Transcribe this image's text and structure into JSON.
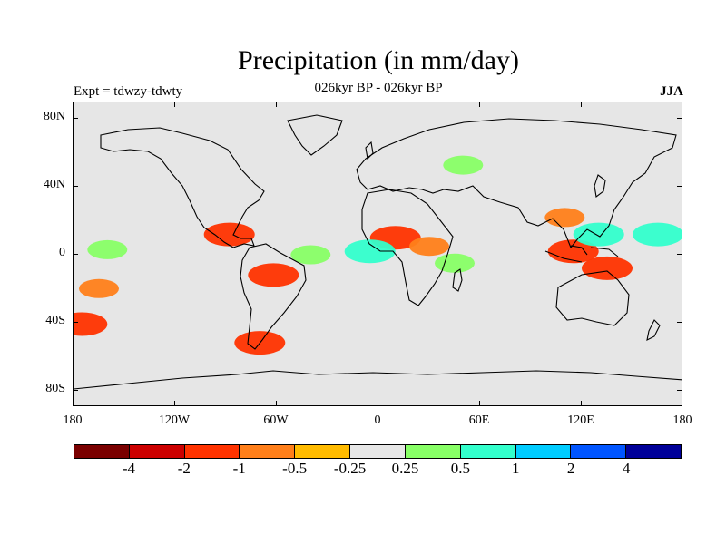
{
  "title": "Precipitation (in mm/day)",
  "subtitle": "026kyr BP - 026kyr BP",
  "experiment": "Expt = tdwzy-tdwty",
  "season": "JJA",
  "lat_ticks": [
    "80N",
    "40N",
    "0",
    "40S",
    "80S"
  ],
  "lon_ticks": [
    "180",
    "120W",
    "60W",
    "0",
    "60E",
    "120E",
    "180"
  ],
  "colorbar": {
    "colors": [
      "#7a0000",
      "#cc0000",
      "#ff3300",
      "#ff7f1a",
      "#ffbb00",
      "#e6e6e6",
      "#88ff66",
      "#33ffcc",
      "#00ccff",
      "#0055ff",
      "#000099"
    ],
    "labels": [
      "-4",
      "-2",
      "-1",
      "-0.5",
      "-0.25",
      "0.25",
      "0.5",
      "1",
      "2",
      "4"
    ]
  },
  "chart_data": {
    "type": "heatmap",
    "title": "Precipitation (in mm/day)",
    "subtitle": "026kyr BP - 026kyr BP",
    "variable": "precipitation anomaly",
    "units": "mm/day",
    "season": "JJA",
    "x_range": [
      -180,
      180
    ],
    "y_range": [
      -90,
      90
    ],
    "contour_levels": [
      -4,
      -2,
      -1,
      -0.5,
      -0.25,
      0.25,
      0.5,
      1,
      2,
      4
    ],
    "anomalies": [
      {
        "lon": -88,
        "lat": 12,
        "value": -1
      },
      {
        "lon": -62,
        "lat": -12,
        "value": -1
      },
      {
        "lon": -70,
        "lat": -52,
        "value": -1
      },
      {
        "lon": 10,
        "lat": 10,
        "value": -1
      },
      {
        "lon": 30,
        "lat": 5,
        "value": -0.5
      },
      {
        "lon": 115,
        "lat": 2,
        "value": -1
      },
      {
        "lon": 135,
        "lat": -8,
        "value": -1
      },
      {
        "lon": 110,
        "lat": 22,
        "value": -0.5
      },
      {
        "lon": -165,
        "lat": -20,
        "value": -0.5
      },
      {
        "lon": -175,
        "lat": -41,
        "value": -1
      },
      {
        "lon": -40,
        "lat": 0,
        "value": 0.5
      },
      {
        "lon": -5,
        "lat": 2,
        "value": 1
      },
      {
        "lon": 45,
        "lat": -5,
        "value": 0.5
      },
      {
        "lon": 130,
        "lat": 12,
        "value": 1
      },
      {
        "lon": 165,
        "lat": 12,
        "value": 1
      },
      {
        "lon": -160,
        "lat": 3,
        "value": 0.5
      },
      {
        "lon": 50,
        "lat": 53,
        "value": 0.5
      }
    ]
  }
}
